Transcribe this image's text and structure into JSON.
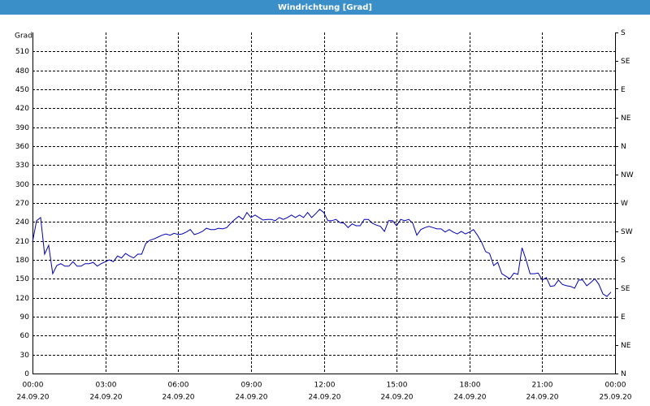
{
  "chart_data": {
    "type": "line",
    "title": "Windrichtung [Grad]",
    "y_label": "Grad",
    "xlim": [
      0,
      1440
    ],
    "xticks": [
      {
        "value": 0,
        "label": "00:00",
        "date": "24.09.20"
      },
      {
        "value": 180,
        "label": "03:00",
        "date": "24.09.20"
      },
      {
        "value": 360,
        "label": "06:00",
        "date": "24.09.20"
      },
      {
        "value": 540,
        "label": "09:00",
        "date": "24.09.20"
      },
      {
        "value": 720,
        "label": "12:00",
        "date": "24.09.20"
      },
      {
        "value": 900,
        "label": "15:00",
        "date": "24.09.20"
      },
      {
        "value": 1080,
        "label": "18:00",
        "date": "24.09.20"
      },
      {
        "value": 1260,
        "label": "21:00",
        "date": "24.09.20"
      },
      {
        "value": 1440,
        "label": "00:00",
        "date": "25.09.20"
      }
    ],
    "ylim": [
      0,
      540
    ],
    "yticks": [
      0,
      30,
      60,
      90,
      120,
      150,
      180,
      210,
      240,
      270,
      300,
      330,
      360,
      390,
      420,
      450,
      480,
      510
    ],
    "y2lim": [
      0,
      540
    ],
    "y2ticks": [
      {
        "value": 0,
        "label": "N"
      },
      {
        "value": 45,
        "label": "NE"
      },
      {
        "value": 90,
        "label": "E"
      },
      {
        "value": 135,
        "label": "SE"
      },
      {
        "value": 180,
        "label": "S"
      },
      {
        "value": 225,
        "label": "SW"
      },
      {
        "value": 270,
        "label": "W"
      },
      {
        "value": 315,
        "label": "NW"
      },
      {
        "value": 360,
        "label": "N"
      },
      {
        "value": 405,
        "label": "NE"
      },
      {
        "value": 450,
        "label": "E"
      },
      {
        "value": 495,
        "label": "SE"
      },
      {
        "value": 540,
        "label": "S"
      }
    ],
    "grid": true,
    "x": [
      0,
      10,
      20,
      30,
      40,
      50,
      60,
      70,
      80,
      90,
      100,
      110,
      120,
      130,
      140,
      150,
      160,
      170,
      180,
      190,
      200,
      210,
      220,
      230,
      240,
      250,
      260,
      270,
      280,
      290,
      300,
      310,
      320,
      330,
      340,
      350,
      360,
      370,
      380,
      390,
      400,
      410,
      420,
      430,
      440,
      450,
      460,
      470,
      480,
      490,
      500,
      510,
      520,
      530,
      540,
      550,
      560,
      570,
      580,
      590,
      600,
      610,
      620,
      630,
      640,
      650,
      660,
      670,
      680,
      690,
      700,
      710,
      720,
      730,
      740,
      750,
      760,
      770,
      780,
      790,
      800,
      810,
      820,
      830,
      840,
      850,
      860,
      870,
      880,
      890,
      900,
      910,
      920,
      930,
      940,
      950,
      960,
      970,
      980,
      990,
      1000,
      1010,
      1020,
      1030,
      1040,
      1050,
      1060,
      1070,
      1080,
      1090,
      1100,
      1110,
      1120,
      1130,
      1140,
      1150,
      1160,
      1170,
      1180,
      1190,
      1200,
      1210,
      1220,
      1230,
      1240,
      1250,
      1260,
      1270,
      1280,
      1290,
      1300,
      1310,
      1320,
      1330,
      1340,
      1350,
      1360,
      1370,
      1380,
      1390,
      1400,
      1410,
      1420,
      1430
    ],
    "series": [
      {
        "name": "Windrichtung",
        "color": "#0000b8",
        "values": [
          208,
          242,
          247,
          189,
          203,
          158,
          171,
          174,
          170,
          170,
          177,
          170,
          170,
          174,
          174,
          176,
          170,
          174,
          177,
          180,
          177,
          186,
          183,
          190,
          186,
          183,
          189,
          189,
          206,
          211,
          213,
          216,
          219,
          221,
          219,
          222,
          220,
          221,
          224,
          228,
          220,
          222,
          225,
          230,
          228,
          228,
          230,
          229,
          231,
          238,
          244,
          249,
          244,
          255,
          247,
          251,
          247,
          243,
          244,
          244,
          242,
          247,
          244,
          247,
          251,
          247,
          251,
          247,
          255,
          247,
          253,
          260,
          255,
          242,
          242,
          244,
          239,
          238,
          231,
          237,
          234,
          234,
          244,
          244,
          238,
          235,
          233,
          225,
          242,
          242,
          234,
          244,
          242,
          244,
          238,
          219,
          228,
          231,
          233,
          231,
          229,
          229,
          224,
          228,
          224,
          221,
          225,
          221,
          224,
          228,
          219,
          208,
          193,
          190,
          171,
          176,
          158,
          154,
          150,
          159,
          157,
          199,
          180,
          158,
          158,
          159,
          148,
          152,
          138,
          139,
          148,
          141,
          139,
          138,
          135,
          148,
          148,
          139,
          144,
          150,
          141,
          126,
          122,
          129
        ]
      }
    ]
  }
}
